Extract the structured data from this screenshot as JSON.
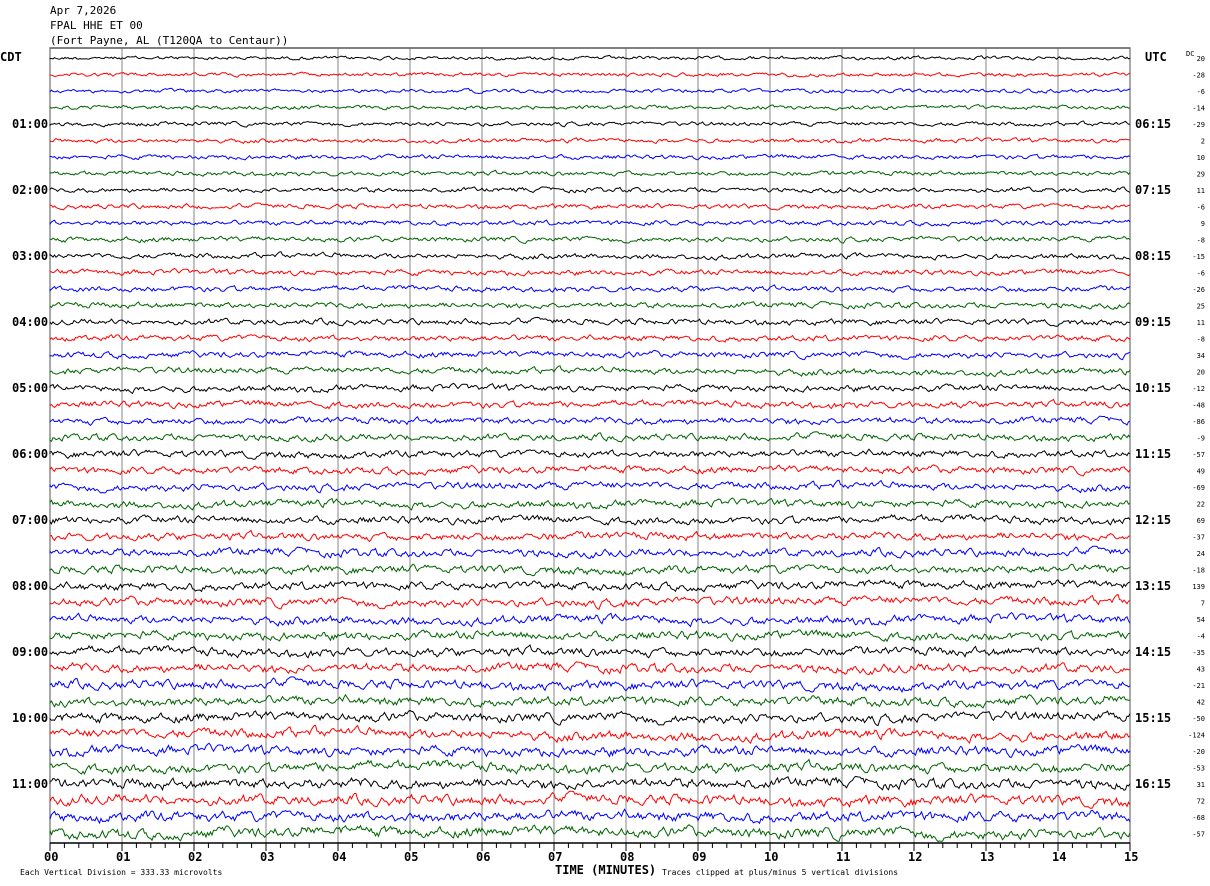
{
  "header": {
    "date": "Apr 7,2026",
    "station": "FPAL HHE ET 00",
    "location": "(Fort Payne, AL (T120QA to Centaur))"
  },
  "chart_data": {
    "type": "line",
    "title": "FPAL HHE ET 00 helicorder",
    "xlabel": "TIME (MINUTES)",
    "left_axis_label": "CDT",
    "right_axis_label": "UTC",
    "dc_label": "DC",
    "xlim": [
      0,
      15
    ],
    "x_ticks": [
      "00",
      "01",
      "02",
      "03",
      "04",
      "05",
      "06",
      "07",
      "08",
      "09",
      "10",
      "11",
      "12",
      "13",
      "14",
      "15"
    ],
    "traces_per_hour": 4,
    "minutes_per_trace": 15,
    "trace_colors": [
      "#000000",
      "#ff0000",
      "#0000ff",
      "#006400"
    ],
    "left_hour_labels": [
      "01:00",
      "02:00",
      "03:00",
      "04:00",
      "05:00",
      "06:00",
      "07:00",
      "08:00",
      "09:00",
      "10:00",
      "11:00"
    ],
    "right_hour_labels": [
      "06:15",
      "07:15",
      "08:15",
      "09:15",
      "10:15",
      "11:15",
      "12:15",
      "13:15",
      "14:15",
      "15:15",
      "16:15"
    ],
    "dc_offsets": [
      "20",
      "-28",
      "-6",
      "-14",
      "-29",
      "2",
      "10",
      "29",
      "11",
      "-6",
      "9",
      "-8",
      "-15",
      "-6",
      "-26",
      "25",
      "11",
      "-8",
      "34",
      "20",
      "-12",
      "-48",
      "-86",
      "-9",
      "-57",
      "49",
      "-69",
      "22",
      "69",
      "-37",
      "24",
      "-18",
      "139",
      "7",
      "54",
      "-4",
      "-35",
      "43",
      "-21",
      "42",
      "-50",
      "-124",
      "-20",
      "-53",
      "31",
      "72",
      "-68",
      "-57"
    ]
  },
  "footer": {
    "scale": "Each Vertical Division =  333.33 microvolts",
    "clip_note": "Traces clipped at plus/minus 5 vertical divisions"
  }
}
